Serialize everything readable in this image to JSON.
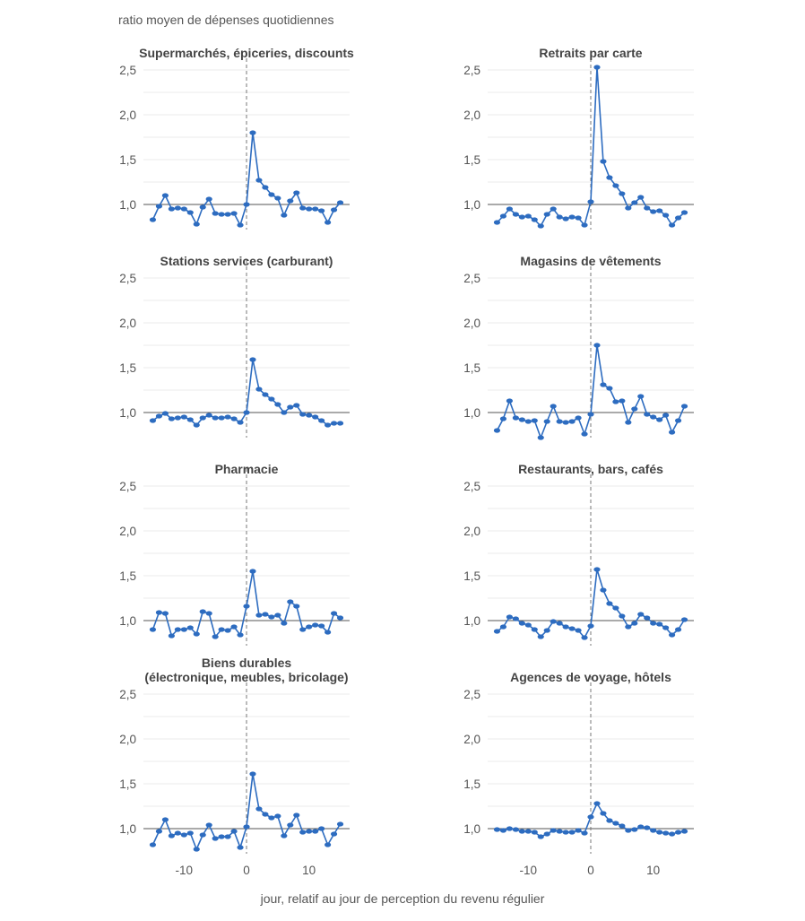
{
  "y_axis_label": "ratio moyen de dépenses quotidiennes",
  "x_axis_label": "jour, relatif au jour de perception du revenu régulier",
  "colors": {
    "series": "#2d6cc0",
    "grid": "#ebebeb",
    "baseline": "#555555",
    "vline": "#777777",
    "text": "#444444"
  },
  "chart_data": {
    "type": "line",
    "layout": "facet-grid-4x2",
    "x": [
      -15,
      -14,
      -13,
      -12,
      -11,
      -10,
      -9,
      -8,
      -7,
      -6,
      -5,
      -4,
      -3,
      -2,
      -1,
      0,
      1,
      2,
      3,
      4,
      5,
      6,
      7,
      8,
      9,
      10,
      11,
      12,
      13,
      14,
      15
    ],
    "x_ticks": [
      "-10",
      "0",
      "10"
    ],
    "x_tick_values": [
      -10,
      0,
      10
    ],
    "y_ticks": [
      "1,0",
      "1,5",
      "2,0",
      "2,5"
    ],
    "y_tick_values": [
      1.0,
      1.5,
      2.0,
      2.5
    ],
    "reference_line_y": 1.0,
    "reference_line_x": 0,
    "grid": true,
    "panels": [
      {
        "title": "Supermarchés, épiceries, discounts",
        "ylim": [
          0.72,
          2.6
        ],
        "values": [
          0.83,
          0.98,
          1.1,
          0.95,
          0.96,
          0.95,
          0.91,
          0.78,
          0.97,
          1.06,
          0.9,
          0.89,
          0.89,
          0.9,
          0.77,
          1.0,
          1.8,
          1.27,
          1.19,
          1.11,
          1.07,
          0.88,
          1.04,
          1.13,
          0.96,
          0.95,
          0.95,
          0.93,
          0.8,
          0.94,
          1.02
        ]
      },
      {
        "title": "Retraits par carte",
        "ylim": [
          0.72,
          2.6
        ],
        "values": [
          0.8,
          0.87,
          0.95,
          0.89,
          0.86,
          0.87,
          0.83,
          0.76,
          0.89,
          0.95,
          0.86,
          0.84,
          0.86,
          0.85,
          0.77,
          1.03,
          2.53,
          1.48,
          1.3,
          1.21,
          1.12,
          0.96,
          1.02,
          1.08,
          0.96,
          0.92,
          0.93,
          0.88,
          0.77,
          0.85,
          0.91
        ]
      },
      {
        "title": "Stations services (carburant)",
        "ylim": [
          0.72,
          2.6
        ],
        "values": [
          0.91,
          0.96,
          0.99,
          0.93,
          0.94,
          0.95,
          0.92,
          0.86,
          0.94,
          0.97,
          0.94,
          0.94,
          0.95,
          0.93,
          0.89,
          1.0,
          1.59,
          1.26,
          1.2,
          1.15,
          1.09,
          1.0,
          1.06,
          1.08,
          0.98,
          0.97,
          0.95,
          0.91,
          0.86,
          0.88,
          0.88
        ]
      },
      {
        "title": "Magasins de vêtements",
        "ylim": [
          0.72,
          2.6
        ],
        "values": [
          0.8,
          0.93,
          1.13,
          0.94,
          0.92,
          0.9,
          0.91,
          0.72,
          0.9,
          1.07,
          0.9,
          0.89,
          0.9,
          0.94,
          0.76,
          0.98,
          1.75,
          1.31,
          1.27,
          1.12,
          1.13,
          0.89,
          1.04,
          1.18,
          0.98,
          0.95,
          0.92,
          0.97,
          0.78,
          0.91,
          1.07
        ]
      },
      {
        "title": "Pharmacie",
        "ylim": [
          0.72,
          2.6
        ],
        "values": [
          0.9,
          1.09,
          1.08,
          0.83,
          0.9,
          0.9,
          0.92,
          0.85,
          1.1,
          1.08,
          0.82,
          0.9,
          0.89,
          0.93,
          0.84,
          1.16,
          1.55,
          1.06,
          1.07,
          1.04,
          1.06,
          0.97,
          1.21,
          1.16,
          0.9,
          0.93,
          0.95,
          0.94,
          0.87,
          1.08,
          1.03
        ]
      },
      {
        "title": "Restaurants, bars, cafés",
        "ylim": [
          0.72,
          2.6
        ],
        "values": [
          0.88,
          0.93,
          1.04,
          1.02,
          0.97,
          0.95,
          0.9,
          0.82,
          0.89,
          0.99,
          0.97,
          0.93,
          0.91,
          0.89,
          0.81,
          0.94,
          1.57,
          1.34,
          1.19,
          1.14,
          1.05,
          0.93,
          0.97,
          1.07,
          1.03,
          0.97,
          0.96,
          0.92,
          0.84,
          0.9,
          1.01
        ]
      },
      {
        "title": "Biens durables\n(électronique, meubles, bricolage)",
        "ylim": [
          0.72,
          2.6
        ],
        "values": [
          0.82,
          0.97,
          1.1,
          0.92,
          0.95,
          0.93,
          0.95,
          0.77,
          0.93,
          1.04,
          0.89,
          0.91,
          0.91,
          0.97,
          0.79,
          1.02,
          1.61,
          1.22,
          1.16,
          1.12,
          1.14,
          0.92,
          1.04,
          1.15,
          0.96,
          0.97,
          0.97,
          1.0,
          0.82,
          0.94,
          1.05
        ]
      },
      {
        "title": "Agences de voyage, hôtels",
        "ylim": [
          0.72,
          2.6
        ],
        "values": [
          0.99,
          0.98,
          1.0,
          0.99,
          0.97,
          0.97,
          0.96,
          0.91,
          0.94,
          0.98,
          0.97,
          0.96,
          0.96,
          0.98,
          0.95,
          1.13,
          1.28,
          1.17,
          1.09,
          1.06,
          1.03,
          0.98,
          0.99,
          1.02,
          1.01,
          0.98,
          0.96,
          0.95,
          0.94,
          0.96,
          0.97
        ]
      }
    ]
  }
}
